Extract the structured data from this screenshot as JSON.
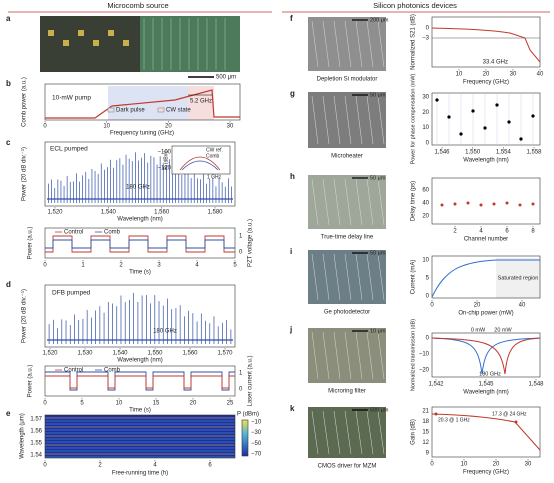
{
  "header": {
    "left": "Microcomb source",
    "right": "Silicon photonics devices"
  },
  "a": {
    "label": "a",
    "scale_bar": "500 μm"
  },
  "b": {
    "label": "b",
    "ylabel": "Comb power (a.u.)",
    "xlabel": "Frequency tuning (GHz)",
    "xticks": [
      "0",
      "10",
      "20",
      "30"
    ],
    "annotation": "10-mW pump",
    "legend": [
      "Dark pulse",
      "CW state"
    ],
    "span": "5.2 GHz"
  },
  "c": {
    "label": "c",
    "title": "ECL pumped",
    "ylabel": "Power (20 dB div.⁻¹)",
    "xlabel": "Wavelength (nm)",
    "xticks": [
      "1,520",
      "1,540",
      "1,560",
      "1,580"
    ],
    "spacing": "180 GHz",
    "inset": {
      "ylabel": "Pᵢ (dBm)",
      "yticks": [
        "−100",
        "−120"
      ],
      "legend": [
        "CW ref.",
        "Comb"
      ],
      "span": "1 GHz"
    },
    "time": {
      "ylabel": "Power (a.u.)",
      "y2label": "PZT voltage (a.u.)",
      "y2ticks": [
        "1",
        "0"
      ],
      "legend": [
        "Control",
        "Comb"
      ],
      "xticks": [
        "0",
        "1",
        "2",
        "3",
        "4",
        "5"
      ],
      "xlabel": "Time (s)"
    }
  },
  "d": {
    "label": "d",
    "title": "DFB pumped",
    "ylabel": "Power (20 dB div.⁻¹)",
    "xlabel": "Wavelength (nm)",
    "xticks": [
      "1,520",
      "1,530",
      "1,540",
      "1,550",
      "1,560",
      "1,570"
    ],
    "spacing": "180 GHz",
    "time": {
      "ylabel": "Power (a.u.)",
      "y2label": "Laser current (a.u.)",
      "y2ticks": [
        "1",
        "0"
      ],
      "legend": [
        "Control",
        "Comb"
      ],
      "xticks": [
        "0",
        "5",
        "10",
        "15",
        "20",
        "25"
      ],
      "xlabel": "Time (s)"
    }
  },
  "e": {
    "label": "e",
    "ylabel": "Wavelength (μm)",
    "yticks": [
      "1.57",
      "1.56",
      "1.55",
      "1.54"
    ],
    "xticks": [
      "0",
      "2",
      "4",
      "6"
    ],
    "xlabel": "Free-running time (h)",
    "colorbar": {
      "title": "P (dBm)",
      "ticks": [
        "−10",
        "−30",
        "−50",
        "−70"
      ]
    }
  },
  "f": {
    "label": "f",
    "scale_bar": "200 μm",
    "caption": "Depletion Si modulator",
    "ylabel": "Normalized S21 (dB)",
    "yticks": [
      "0",
      "−3"
    ],
    "xticks": [
      "10",
      "20",
      "30",
      "40"
    ],
    "xlabel": "Frequency (GHz)",
    "annotation": "33.4 GHz"
  },
  "g": {
    "label": "g",
    "scale_bar": "50 μm",
    "caption": "Microheater",
    "ylabel": "Power for phase compensation (mW)",
    "yticks": [
      "30",
      "20",
      "10",
      "0"
    ],
    "xticks": [
      "1,546",
      "1,550",
      "1,554",
      "1,558"
    ],
    "xlabel": "Wavelength (nm)"
  },
  "h": {
    "label": "h",
    "scale_bar": "50 μm",
    "caption": "True-time delay line",
    "ylabel": "Delay time (ps)",
    "yticks": [
      "60",
      "40",
      "20"
    ],
    "xticks": [
      "2",
      "4",
      "6",
      "8"
    ],
    "xlabel": "Channel number"
  },
  "i": {
    "label": "i",
    "scale_bar": "50 μm",
    "caption": "Ge photodetector",
    "ylabel": "Current (mA)",
    "yticks": [
      "10",
      "5",
      "0"
    ],
    "xticks": [
      "0",
      "20",
      "40"
    ],
    "xlabel": "On-chip power (mW)",
    "annotation": "Saturated region"
  },
  "j": {
    "label": "j",
    "scale_bar": "10 μm",
    "caption": "Microring filter",
    "ylabel": "Normalized transmission (dB)",
    "yticks": [
      "0",
      "−10",
      "−20"
    ],
    "xticks": [
      "1,542",
      "1,545",
      "1,548"
    ],
    "xlabel": "Wavelength (nm)",
    "legend": [
      "0 mW",
      "20 mW"
    ],
    "annotation": "180 GHz"
  },
  "k": {
    "label": "k",
    "scale_bar": "500 μm",
    "caption": "CMOS driver for MZM",
    "ylabel": "Gain (dB)",
    "yticks": [
      "21",
      "18",
      "15",
      "12",
      "9"
    ],
    "xticks": [
      "0",
      "10",
      "20",
      "30"
    ],
    "xlabel": "Frequency (GHz)",
    "annotations": [
      "20.3 @ 1 GHz",
      "17.3 @ 24 GHz"
    ]
  }
}
